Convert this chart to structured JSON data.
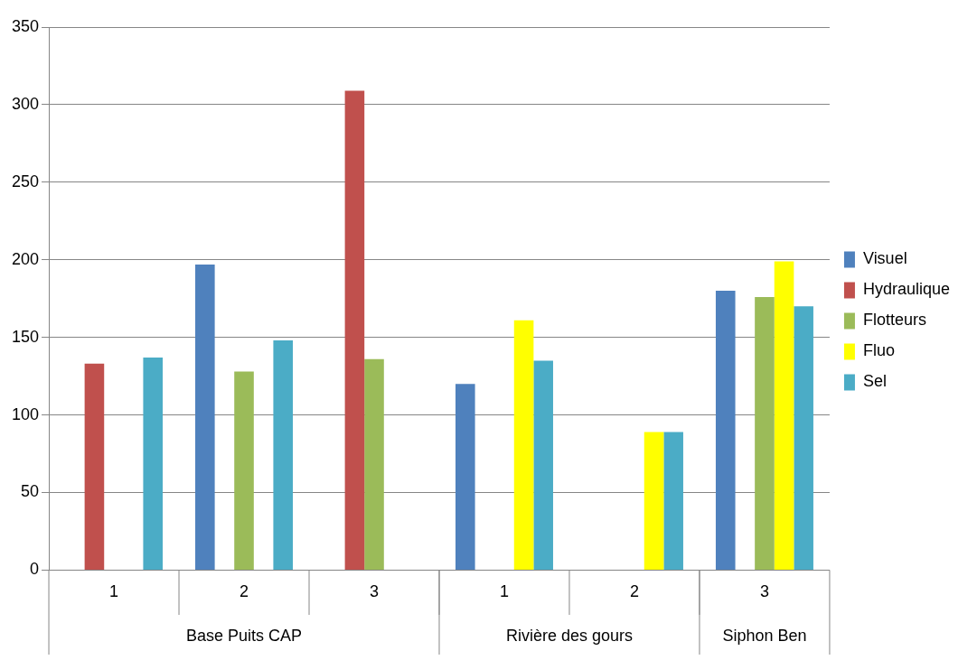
{
  "chart_data": {
    "type": "bar",
    "categories": [
      "1",
      "2",
      "3",
      "1",
      "2",
      "3"
    ],
    "series": [
      {
        "name": "Visuel",
        "color": "#4f81bd",
        "values": [
          null,
          197,
          null,
          120,
          null,
          180
        ]
      },
      {
        "name": "Hydraulique",
        "color": "#c0504d",
        "values": [
          133,
          null,
          309,
          null,
          null,
          null
        ]
      },
      {
        "name": "Flotteurs",
        "color": "#9bbb59",
        "values": [
          null,
          128,
          136,
          null,
          null,
          176
        ]
      },
      {
        "name": "Fluo",
        "color": "#ffff00",
        "values": [
          null,
          null,
          null,
          161,
          89,
          199
        ]
      },
      {
        "name": "Sel",
        "color": "#4bacc6",
        "values": [
          137,
          148,
          null,
          135,
          89,
          170
        ]
      }
    ],
    "ylim": [
      0,
      350
    ],
    "yticks": [
      0,
      50,
      100,
      150,
      200,
      250,
      300,
      350
    ],
    "grid": "y",
    "legend": "right",
    "annotations": [
      "Base Puits CAP",
      "Rivière des gours",
      "Siphon Ben"
    ]
  }
}
